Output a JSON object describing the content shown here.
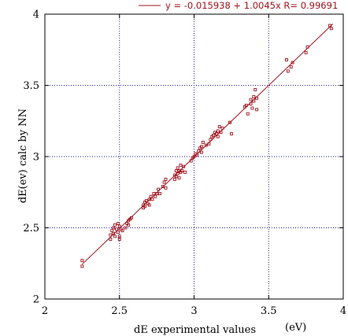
{
  "chart_data": {
    "type": "scatter",
    "title": "",
    "xlabel": "dE experimental values",
    "xunit": "(eV)",
    "ylabel": "dE(ev) calc by NN",
    "xlim": [
      2,
      4
    ],
    "ylim": [
      2,
      4
    ],
    "x_ticks": [
      "2",
      "2.5",
      "3",
      "3.5",
      "4"
    ],
    "y_ticks": [
      "2",
      "2.5",
      "3",
      "3.5",
      "4"
    ],
    "grid": "dotted at 2.5, 3, 3.5",
    "legend_position": "top-right",
    "legend_text": "y = -0.015938 + 1.0045x R= 0.99691",
    "fit": {
      "intercept": -0.015938,
      "slope": 1.0045,
      "x_range": [
        2.25,
        3.93
      ]
    },
    "colors": {
      "points": "#a0141e",
      "line": "#a0141e",
      "grid": "#2020a0",
      "axes": "#000000"
    },
    "points": [
      [
        2.25,
        2.27
      ],
      [
        2.25,
        2.23
      ],
      [
        2.44,
        2.42
      ],
      [
        2.44,
        2.45
      ],
      [
        2.45,
        2.48
      ],
      [
        2.46,
        2.5
      ],
      [
        2.46,
        2.46
      ],
      [
        2.47,
        2.52
      ],
      [
        2.47,
        2.44
      ],
      [
        2.48,
        2.49
      ],
      [
        2.49,
        2.47
      ],
      [
        2.49,
        2.53
      ],
      [
        2.5,
        2.51
      ],
      [
        2.5,
        2.44
      ],
      [
        2.5,
        2.42
      ],
      [
        2.51,
        2.49
      ],
      [
        2.52,
        2.48
      ],
      [
        2.54,
        2.5
      ],
      [
        2.55,
        2.53
      ],
      [
        2.56,
        2.55
      ],
      [
        2.56,
        2.52
      ],
      [
        2.57,
        2.56
      ],
      [
        2.58,
        2.57
      ],
      [
        2.66,
        2.66
      ],
      [
        2.66,
        2.64
      ],
      [
        2.67,
        2.68
      ],
      [
        2.67,
        2.65
      ],
      [
        2.68,
        2.69
      ],
      [
        2.69,
        2.67
      ],
      [
        2.7,
        2.7
      ],
      [
        2.7,
        2.66
      ],
      [
        2.71,
        2.72
      ],
      [
        2.72,
        2.7
      ],
      [
        2.73,
        2.74
      ],
      [
        2.74,
        2.72
      ],
      [
        2.75,
        2.74
      ],
      [
        2.76,
        2.77
      ],
      [
        2.77,
        2.74
      ],
      [
        2.79,
        2.79
      ],
      [
        2.8,
        2.82
      ],
      [
        2.81,
        2.84
      ],
      [
        2.81,
        2.78
      ],
      [
        2.87,
        2.84
      ],
      [
        2.87,
        2.87
      ],
      [
        2.88,
        2.9
      ],
      [
        2.88,
        2.86
      ],
      [
        2.89,
        2.88
      ],
      [
        2.89,
        2.92
      ],
      [
        2.9,
        2.85
      ],
      [
        2.9,
        2.9
      ],
      [
        2.91,
        2.89
      ],
      [
        2.91,
        2.94
      ],
      [
        2.92,
        2.9
      ],
      [
        2.93,
        2.93
      ],
      [
        2.94,
        2.89
      ],
      [
        2.98,
        2.97
      ],
      [
        2.99,
        2.99
      ],
      [
        3.0,
        3.0
      ],
      [
        3.01,
        3.02
      ],
      [
        3.02,
        3.01
      ],
      [
        3.03,
        3.04
      ],
      [
        3.04,
        3.06
      ],
      [
        3.05,
        3.07
      ],
      [
        3.05,
        3.03
      ],
      [
        3.06,
        3.1
      ],
      [
        3.08,
        3.08
      ],
      [
        3.1,
        3.09
      ],
      [
        3.11,
        3.12
      ],
      [
        3.12,
        3.14
      ],
      [
        3.13,
        3.15
      ],
      [
        3.14,
        3.17
      ],
      [
        3.15,
        3.16
      ],
      [
        3.16,
        3.18
      ],
      [
        3.16,
        3.14
      ],
      [
        3.17,
        3.21
      ],
      [
        3.18,
        3.17
      ],
      [
        3.19,
        3.2
      ],
      [
        3.24,
        3.24
      ],
      [
        3.25,
        3.16
      ],
      [
        3.34,
        3.35
      ],
      [
        3.35,
        3.36
      ],
      [
        3.36,
        3.3
      ],
      [
        3.38,
        3.37
      ],
      [
        3.38,
        3.4
      ],
      [
        3.39,
        3.34
      ],
      [
        3.4,
        3.42
      ],
      [
        3.4,
        3.39
      ],
      [
        3.41,
        3.47
      ],
      [
        3.42,
        3.41
      ],
      [
        3.42,
        3.33
      ],
      [
        3.62,
        3.68
      ],
      [
        3.63,
        3.6
      ],
      [
        3.65,
        3.63
      ],
      [
        3.66,
        3.66
      ],
      [
        3.75,
        3.73
      ],
      [
        3.76,
        3.77
      ],
      [
        3.91,
        3.92
      ],
      [
        3.92,
        3.9
      ]
    ]
  }
}
